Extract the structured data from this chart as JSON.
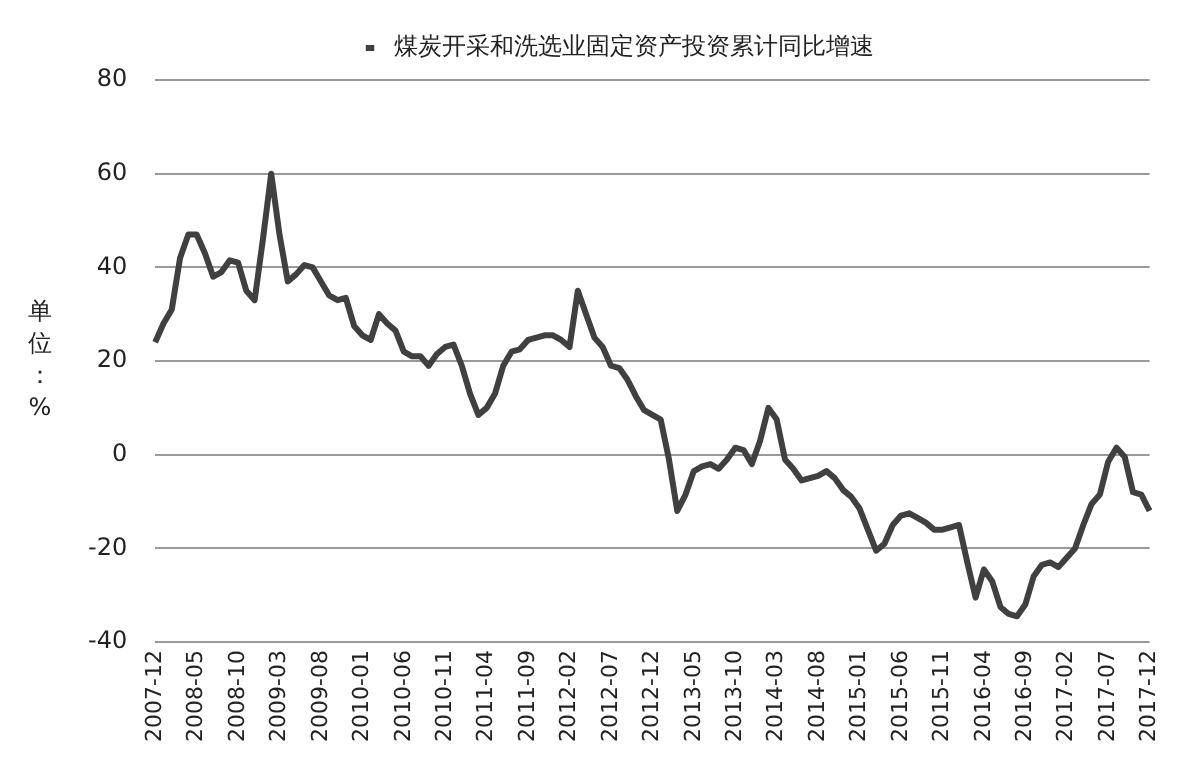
{
  "chart_data": {
    "type": "line",
    "ylabel": "单位：%",
    "categories": [
      "2007-12",
      null,
      null,
      null,
      null,
      "2008-05",
      null,
      null,
      null,
      null,
      "2008-10",
      null,
      null,
      null,
      null,
      "2009-03",
      null,
      null,
      null,
      null,
      "2009-08",
      null,
      null,
      null,
      null,
      "2010-01",
      null,
      null,
      null,
      null,
      "2010-06",
      null,
      null,
      null,
      null,
      "2010-11",
      null,
      null,
      null,
      null,
      "2011-04",
      null,
      null,
      null,
      null,
      "2011-09",
      null,
      null,
      null,
      null,
      "2012-02",
      null,
      null,
      null,
      null,
      "2012-07",
      null,
      null,
      null,
      null,
      "2012-12",
      null,
      null,
      null,
      null,
      "2013-05",
      null,
      null,
      null,
      null,
      "2013-10",
      null,
      null,
      null,
      null,
      "2014-03",
      null,
      null,
      null,
      null,
      "2014-08",
      null,
      null,
      null,
      null,
      "2015-01",
      null,
      null,
      null,
      null,
      "2015-06",
      null,
      null,
      null,
      null,
      "2015-11",
      null,
      null,
      null,
      null,
      "2016-04",
      null,
      null,
      null,
      null,
      "2016-09",
      null,
      null,
      null,
      null,
      "2017-02",
      null,
      null,
      null,
      null,
      "2017-07",
      null,
      null,
      null,
      null,
      "2017-12"
    ],
    "series": [
      {
        "name": "煤炭开采和洗选业固定资产投资累计同比增速",
        "color": "#404040",
        "values": [
          24,
          28,
          31,
          42,
          47,
          47,
          43,
          38,
          39,
          41.5,
          41,
          35,
          33,
          46,
          60,
          47,
          37,
          38.5,
          40.5,
          40,
          37,
          34,
          33,
          33.5,
          27.5,
          25.5,
          24.5,
          30,
          28,
          26.5,
          22,
          21,
          21,
          19,
          21.5,
          23,
          23.5,
          19,
          13,
          8.5,
          10,
          13,
          19,
          22,
          22.5,
          24.5,
          25,
          25.5,
          25.5,
          24.5,
          23,
          35,
          30,
          25,
          23,
          19,
          18.5,
          16,
          12.5,
          9.5,
          8.5,
          7.5,
          -1,
          -12,
          -8.5,
          -3.5,
          -2.5,
          -2,
          -3,
          -1,
          1.5,
          1,
          -2,
          3,
          10,
          7.5,
          -1,
          -3,
          -5.5,
          -5,
          -4.5,
          -3.5,
          -5,
          -7.5,
          -9,
          -11.5,
          -16,
          -20.5,
          -19,
          -15,
          -13,
          -12.5,
          -13.5,
          -14.5,
          -16,
          -16,
          -15.5,
          -15,
          -23,
          -30.5,
          -24.5,
          -27,
          -32.5,
          -34,
          -34.5,
          -32,
          -26,
          -23.5,
          -23,
          -24,
          -22,
          -20,
          -15,
          -10.5,
          -8.5,
          -1.5,
          1.5,
          -0.5,
          -8,
          -8.5,
          -12
        ]
      }
    ],
    "ylim": [
      -40,
      80
    ],
    "yticks": [
      -40,
      -20,
      0,
      20,
      40,
      60,
      80
    ],
    "grid": "y",
    "legend": "top",
    "marker": "none",
    "line_style": "solid"
  }
}
